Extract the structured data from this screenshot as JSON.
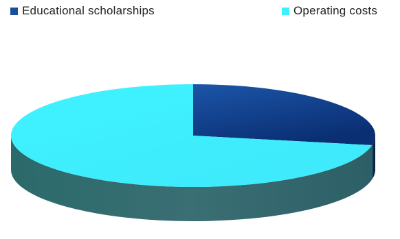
{
  "chart_data": {
    "type": "pie",
    "three_d": true,
    "legend_position": "top",
    "slices": [
      {
        "label": "Educational scholarships",
        "value": 28,
        "color": "#1a4d9c"
      },
      {
        "label": "Operating costs",
        "value": 72,
        "color": "#3ff0ff"
      }
    ]
  }
}
